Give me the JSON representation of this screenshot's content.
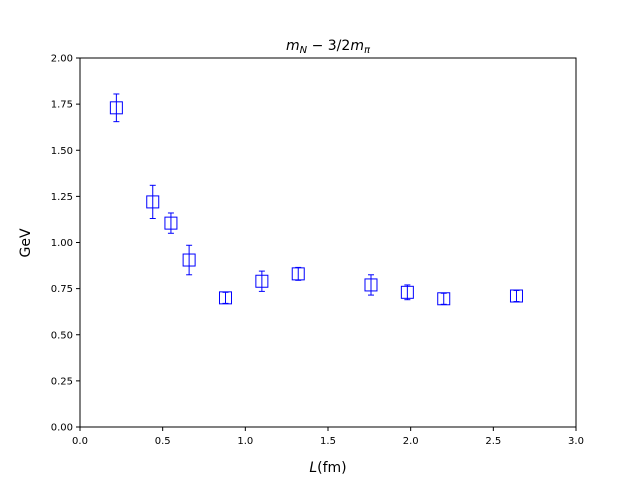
{
  "chart_data": {
    "type": "scatter",
    "title": "m_N − 3/2m_π",
    "title_parts": {
      "m1": "m",
      "s1": "N",
      "mid": " − 3/2",
      "m2": "m",
      "s2": "π"
    },
    "xlabel": "(fm)",
    "xlabel_var": "L",
    "ylabel": "GeV",
    "xlim": [
      0.0,
      3.0
    ],
    "ylim": [
      0.0,
      2.0
    ],
    "xticks": [
      0.0,
      0.5,
      1.0,
      1.5,
      2.0,
      2.5,
      3.0
    ],
    "xtick_labels": [
      "0.0",
      "0.5",
      "1.0",
      "1.5",
      "2.0",
      "2.5",
      "3.0"
    ],
    "yticks": [
      0.0,
      0.25,
      0.5,
      0.75,
      1.0,
      1.25,
      1.5,
      1.75,
      2.0
    ],
    "ytick_labels": [
      "0.00",
      "0.25",
      "0.50",
      "0.75",
      "1.00",
      "1.25",
      "1.50",
      "1.75",
      "2.00"
    ],
    "grid": false,
    "marker": "open-square",
    "color": "#0000ff",
    "series": [
      {
        "points": [
          {
            "x": 0.22,
            "y": 1.73,
            "err": 0.075
          },
          {
            "x": 0.44,
            "y": 1.22,
            "err": 0.09
          },
          {
            "x": 0.55,
            "y": 1.105,
            "err": 0.055
          },
          {
            "x": 0.66,
            "y": 0.905,
            "err": 0.08
          },
          {
            "x": 0.88,
            "y": 0.7,
            "err": 0.03
          },
          {
            "x": 1.1,
            "y": 0.79,
            "err": 0.055
          },
          {
            "x": 1.32,
            "y": 0.83,
            "err": 0.035
          },
          {
            "x": 1.76,
            "y": 0.77,
            "err": 0.055
          },
          {
            "x": 1.98,
            "y": 0.73,
            "err": 0.04
          },
          {
            "x": 2.2,
            "y": 0.695,
            "err": 0.03
          },
          {
            "x": 2.64,
            "y": 0.71,
            "err": 0.03
          }
        ]
      }
    ]
  }
}
